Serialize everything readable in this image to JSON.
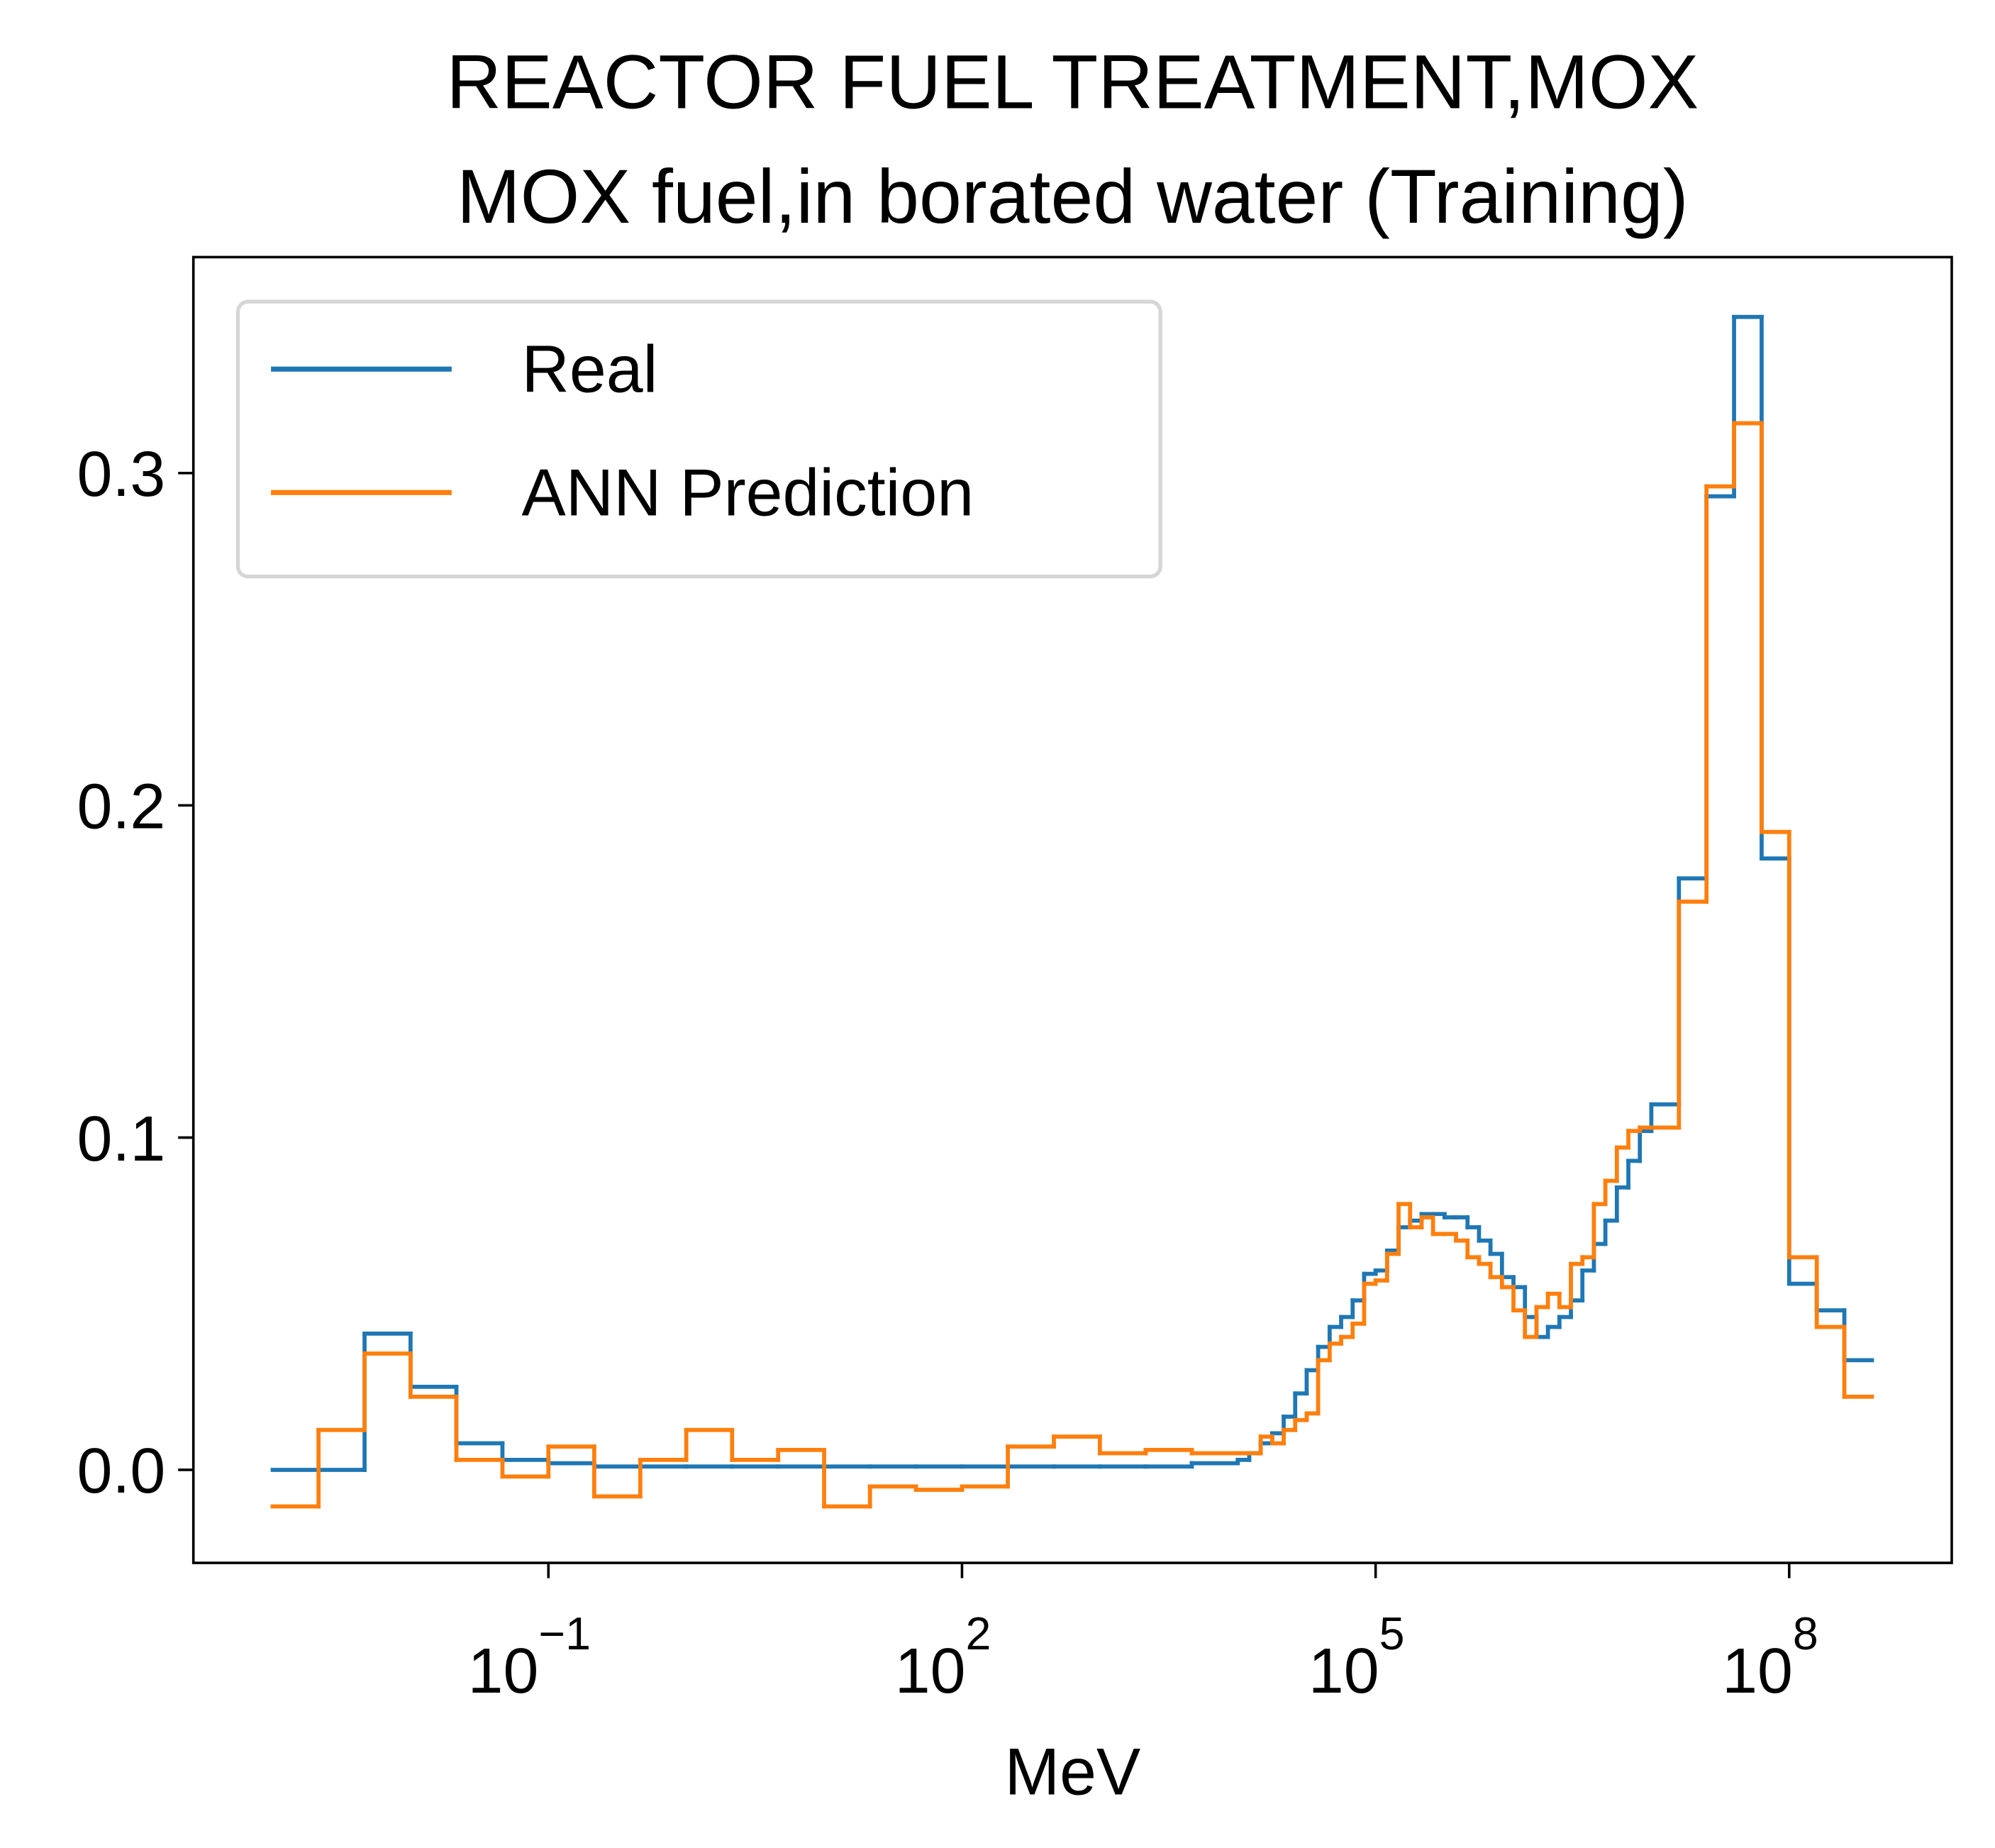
{
  "chart_data": {
    "type": "histogram",
    "title": [
      "REACTOR FUEL TREATMENT,MOX",
      "MOX fuel,in borated water (Training)"
    ],
    "xlabel": "MeV",
    "xscale": "log",
    "xlim": [
      0.000266,
      1510000000
    ],
    "xticks": [
      {
        "value": 0.1,
        "label": "10−1"
      },
      {
        "value": 100,
        "label": "102"
      },
      {
        "value": 100000,
        "label": "105"
      },
      {
        "value": 100000000,
        "label": "108"
      }
    ],
    "ylim": [
      -0.028,
      0.365
    ],
    "yticks": [
      {
        "value": 0,
        "label": "0.0"
      },
      0.1,
      0.2,
      0.3
    ],
    "grid": false,
    "legend": "upper left",
    "bins": [
      0.001,
      0.00215,
      0.00464,
      0.01,
      0.0215,
      0.0464,
      0.1,
      0.215,
      0.464,
      1,
      2.15,
      4.64,
      10,
      21.5,
      46.4,
      100,
      215,
      464,
      1000,
      2150,
      4640,
      10000,
      12115,
      14678,
      17783,
      21544,
      26102,
      31623,
      38312,
      46416,
      56234,
      68129,
      82540,
      100000,
      121150,
      146780,
      177830,
      215440,
      261020,
      316230,
      383120,
      464160,
      562340,
      681290,
      825400,
      1000000,
      1211500,
      1467800,
      1778300,
      2154400,
      2610200,
      3162300,
      3831200,
      4641600,
      5623400,
      6812900,
      8254000,
      10000000,
      15850000,
      25120000,
      39810000,
      63100000,
      100000000,
      158500000,
      251200000,
      398100000
    ],
    "series": [
      {
        "name": "Real",
        "color": "#1f77b4",
        "values": [
          0,
          0,
          0.041,
          0.025,
          0.008,
          0.003,
          0.002,
          0.001,
          0.001,
          0.001,
          0.001,
          0.001,
          0.001,
          0.001,
          0.001,
          0.001,
          0.001,
          0.001,
          0.001,
          0.001,
          0.002,
          0.003,
          0.005,
          0.008,
          0.011,
          0.016,
          0.023,
          0.03,
          0.037,
          0.043,
          0.046,
          0.051,
          0.059,
          0.06,
          0.066,
          0.073,
          0.075,
          0.077,
          0.077,
          0.076,
          0.076,
          0.073,
          0.069,
          0.065,
          0.058,
          0.055,
          0.046,
          0.04,
          0.043,
          0.046,
          0.051,
          0.06,
          0.068,
          0.075,
          0.085,
          0.093,
          0.102,
          0.11,
          0.178,
          0.293,
          0.347,
          0.184,
          0.056,
          0.048,
          0.033
        ]
      },
      {
        "name": "ANN Prediction",
        "color": "#ff7f0e",
        "values": [
          -0.011,
          0.012,
          0.035,
          0.022,
          0.003,
          -0.002,
          0.007,
          -0.008,
          0.003,
          0.012,
          0.003,
          0.006,
          -0.011,
          -0.005,
          -0.006,
          -0.005,
          0.007,
          0.01,
          0.005,
          0.006,
          0.005,
          0.005,
          0.005,
          0.01,
          0.008,
          0.012,
          0.015,
          0.017,
          0.033,
          0.038,
          0.04,
          0.044,
          0.056,
          0.057,
          0.065,
          0.08,
          0.073,
          0.076,
          0.071,
          0.071,
          0.069,
          0.064,
          0.062,
          0.058,
          0.055,
          0.048,
          0.04,
          0.049,
          0.053,
          0.049,
          0.062,
          0.064,
          0.08,
          0.087,
          0.097,
          0.102,
          0.103,
          0.103,
          0.171,
          0.296,
          0.315,
          0.192,
          0.064,
          0.043,
          0.022
        ]
      }
    ]
  }
}
